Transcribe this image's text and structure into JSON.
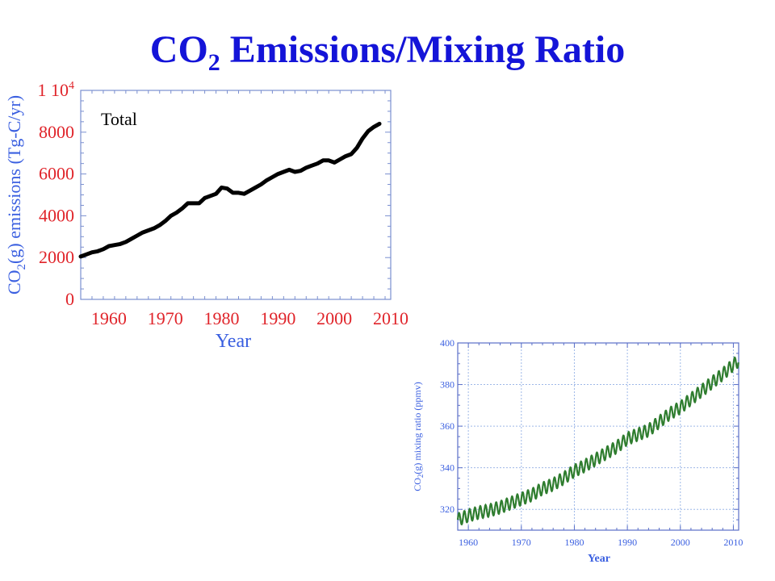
{
  "title": {
    "main": "CO",
    "sub": "2",
    "rest": " Emissions/Mixing Ratio"
  },
  "colors": {
    "title": "#1414d8",
    "axis_label": "#3a5fe0",
    "tick_label_red": "#e0242a",
    "line_left": "#000000",
    "line_right": "#2f7d2f",
    "grid": "#9eb8e8"
  },
  "chart_data": [
    {
      "type": "line",
      "annotation": "Total",
      "xlabel": "Year",
      "ylabel": "CO2(g) emissions (Tg-C/yr)",
      "ylabel_parts": {
        "a": "CO",
        "sub": "2",
        "b": "(g) emissions (Tg-C/yr)"
      },
      "xlim": [
        1955,
        2010
      ],
      "ylim": [
        0,
        10000
      ],
      "x_ticks": [
        "1960",
        "1970",
        "1980",
        "1990",
        "2000",
        "2010"
      ],
      "y_ticks": [
        "0",
        "2000",
        "4000",
        "6000",
        "8000",
        "1 10"
      ],
      "y_top_exp": "4",
      "grid": false,
      "series": [
        {
          "x": [
            1955,
            1956,
            1957,
            1958,
            1959,
            1960,
            1961,
            1962,
            1963,
            1964,
            1965,
            1966,
            1967,
            1968,
            1969,
            1970,
            1971,
            1972,
            1973,
            1974,
            1975,
            1976,
            1977,
            1978,
            1979,
            1980,
            1981,
            1982,
            1983,
            1984,
            1985,
            1986,
            1987,
            1988,
            1989,
            1990,
            1991,
            1992,
            1993,
            1994,
            1995,
            1996,
            1997,
            1998,
            1999,
            2000,
            2001,
            2002,
            2003,
            2004,
            2005,
            2006,
            2007,
            2008
          ],
          "values": [
            2050,
            2150,
            2250,
            2300,
            2400,
            2550,
            2600,
            2650,
            2750,
            2900,
            3050,
            3200,
            3300,
            3400,
            3550,
            3750,
            4000,
            4150,
            4350,
            4600,
            4600,
            4600,
            4850,
            4950,
            5050,
            5350,
            5300,
            5100,
            5100,
            5050,
            5200,
            5350,
            5500,
            5700,
            5850,
            6000,
            6100,
            6200,
            6100,
            6150,
            6300,
            6400,
            6500,
            6650,
            6650,
            6550,
            6700,
            6850,
            6950,
            7250,
            7700,
            8050,
            8250,
            8400
          ]
        }
      ]
    },
    {
      "type": "line",
      "xlabel": "Year",
      "ylabel": "CO2(g) mixing ratio (ppmv)",
      "ylabel_parts": {
        "a": "CO",
        "sub": "2",
        "b": "(g) mixing ratio (ppmv)"
      },
      "xlim": [
        1958,
        2011
      ],
      "ylim": [
        310,
        400
      ],
      "x_ticks": [
        "1960",
        "1970",
        "1980",
        "1990",
        "2000",
        "2010"
      ],
      "y_ticks": [
        "320",
        "340",
        "360",
        "380",
        "400"
      ],
      "grid": true,
      "series": [
        {
          "x": [
            1958,
            1960,
            1962,
            1964,
            1966,
            1968,
            1970,
            1972,
            1974,
            1976,
            1978,
            1980,
            1982,
            1984,
            1986,
            1988,
            1990,
            1992,
            1994,
            1996,
            1998,
            2000,
            2002,
            2004,
            2006,
            2008,
            2010,
            2011
          ],
          "values": [
            315,
            317,
            318.5,
            319.5,
            321,
            323,
            325,
            327,
            330,
            332,
            335,
            338.5,
            341,
            344,
            347,
            350,
            354,
            356,
            358,
            362,
            366,
            369,
            373,
            377,
            381,
            385,
            389.5,
            391.5
          ],
          "seasonal_amplitude": 3
        }
      ]
    }
  ]
}
